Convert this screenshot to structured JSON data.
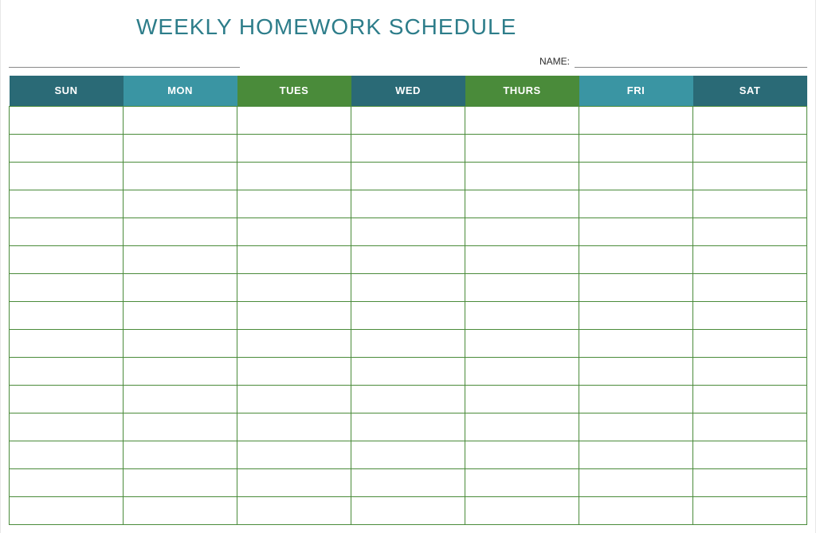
{
  "title": {
    "text": "WEEKLY HOMEWORK SCHEDULE",
    "color": "#2d7d8a",
    "fontsize": 28
  },
  "name_field": {
    "label": "NAME:"
  },
  "table": {
    "columns": [
      {
        "label": "SUN",
        "bg": "#2a6a76"
      },
      {
        "label": "MON",
        "bg": "#3a95a3"
      },
      {
        "label": "TUES",
        "bg": "#4a8b3a"
      },
      {
        "label": "WED",
        "bg": "#2a6a76"
      },
      {
        "label": "THURS",
        "bg": "#4a8b3a"
      },
      {
        "label": "FRI",
        "bg": "#3a95a3"
      },
      {
        "label": "SAT",
        "bg": "#2a6a76"
      }
    ],
    "body_row_count": 15,
    "cell_border_color": "#4a8b3a",
    "cell_bg": "#ffffff"
  }
}
